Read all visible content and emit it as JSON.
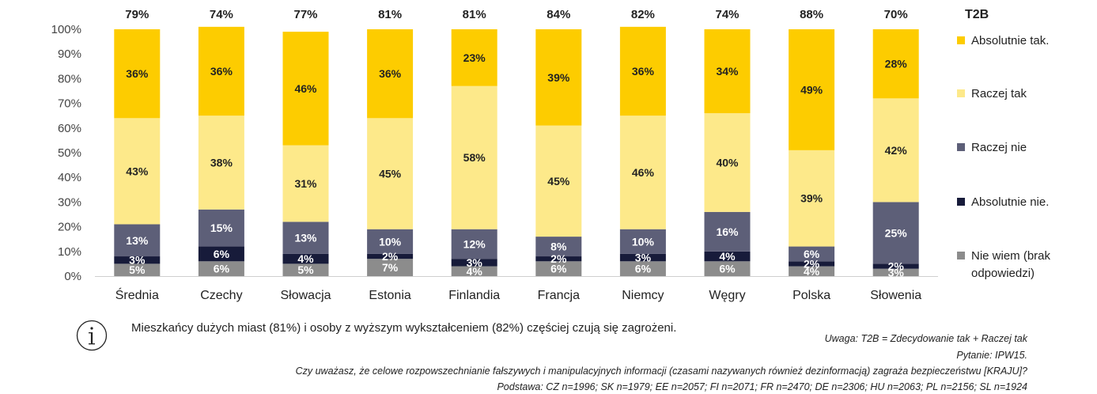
{
  "chart_data": {
    "type": "bar",
    "stacked": true,
    "categories": [
      "Średnia",
      "Czechy",
      "Słowacja",
      "Estonia",
      "Finlandia",
      "Francja",
      "Niemcy",
      "Węgry",
      "Polska",
      "Słowenia"
    ],
    "t2b_values": [
      "79%",
      "74%",
      "77%",
      "81%",
      "81%",
      "84%",
      "82%",
      "74%",
      "88%",
      "70%"
    ],
    "ylim": [
      0,
      100
    ],
    "yticks": [
      "0%",
      "10%",
      "20%",
      "30%",
      "40%",
      "50%",
      "60%",
      "70%",
      "80%",
      "90%",
      "100%"
    ],
    "series": [
      {
        "name": "Nie wiem (brak odpowiedzi)",
        "color": "#8c8c8c",
        "values": [
          5,
          6,
          5,
          7,
          4,
          6,
          6,
          6,
          4,
          3
        ],
        "labels": [
          "5%",
          "6%",
          "5%",
          "7%",
          "4%",
          "6%",
          "6%",
          "6%",
          "4%",
          "3%"
        ]
      },
      {
        "name": "Absolutnie nie.",
        "color": "#171b3a",
        "values": [
          3,
          6,
          4,
          2,
          3,
          2,
          3,
          4,
          2,
          2
        ],
        "labels": [
          "3%",
          "6%",
          "4%",
          "2%",
          "3%",
          "2%",
          "3%",
          "4%",
          "2%",
          "2%"
        ]
      },
      {
        "name": "Raczej nie",
        "color": "#5d5f78",
        "values": [
          13,
          15,
          13,
          10,
          12,
          8,
          10,
          16,
          6,
          25
        ],
        "labels": [
          "13%",
          "15%",
          "13%",
          "10%",
          "12%",
          "8%",
          "10%",
          "16%",
          "6%",
          "25%"
        ]
      },
      {
        "name": "Raczej tak",
        "color": "#fde98a",
        "values": [
          43,
          38,
          31,
          45,
          58,
          45,
          46,
          40,
          39,
          42
        ],
        "labels": [
          "43%",
          "38%",
          "31%",
          "45%",
          "58%",
          "45%",
          "46%",
          "40%",
          "39%",
          "42%"
        ]
      },
      {
        "name": "Absolutnie tak.",
        "color": "#fdcc00",
        "values": [
          36,
          36,
          46,
          36,
          23,
          39,
          36,
          34,
          49,
          28
        ],
        "labels": [
          "36%",
          "36%",
          "46%",
          "36%",
          "23%",
          "39%",
          "36%",
          "34%",
          "49%",
          "28%"
        ]
      }
    ]
  },
  "legend": {
    "title": "T2B",
    "items": [
      {
        "label": "Absolutnie tak.",
        "color": "#fdcc00"
      },
      {
        "label": "Raczej tak",
        "color": "#fde98a"
      },
      {
        "label": "Raczej nie",
        "color": "#5d5f78"
      },
      {
        "label": "Absolutnie nie.",
        "color": "#171b3a"
      },
      {
        "label": "Nie wiem (brak odpowiedzi)",
        "color": "#8c8c8c"
      }
    ]
  },
  "info": {
    "icon": "info-icon",
    "text": "Mieszkańcy dużych miast (81%) i osoby z wyższym wykształceniem (82%) częściej czują się zagrożeni."
  },
  "notes": {
    "uwaga": "Uwaga: T2B = Zdecydowanie tak + Raczej tak",
    "pytanie": "Pytanie: IPW15.",
    "question": "Czy uważasz, że celowe rozpowszechnianie fałszywych i manipulacyjnych informacji (czasami nazywanych również dezinformacją) zagraża bezpieczeństwu [KRAJU]?",
    "podstawa": "Podstawa: CZ n=1996; SK n=1979; EE n=2057; FI n=2071; FR n=2470; DE n=2306; HU n=2063; PL n=2156; SL n=1924"
  }
}
